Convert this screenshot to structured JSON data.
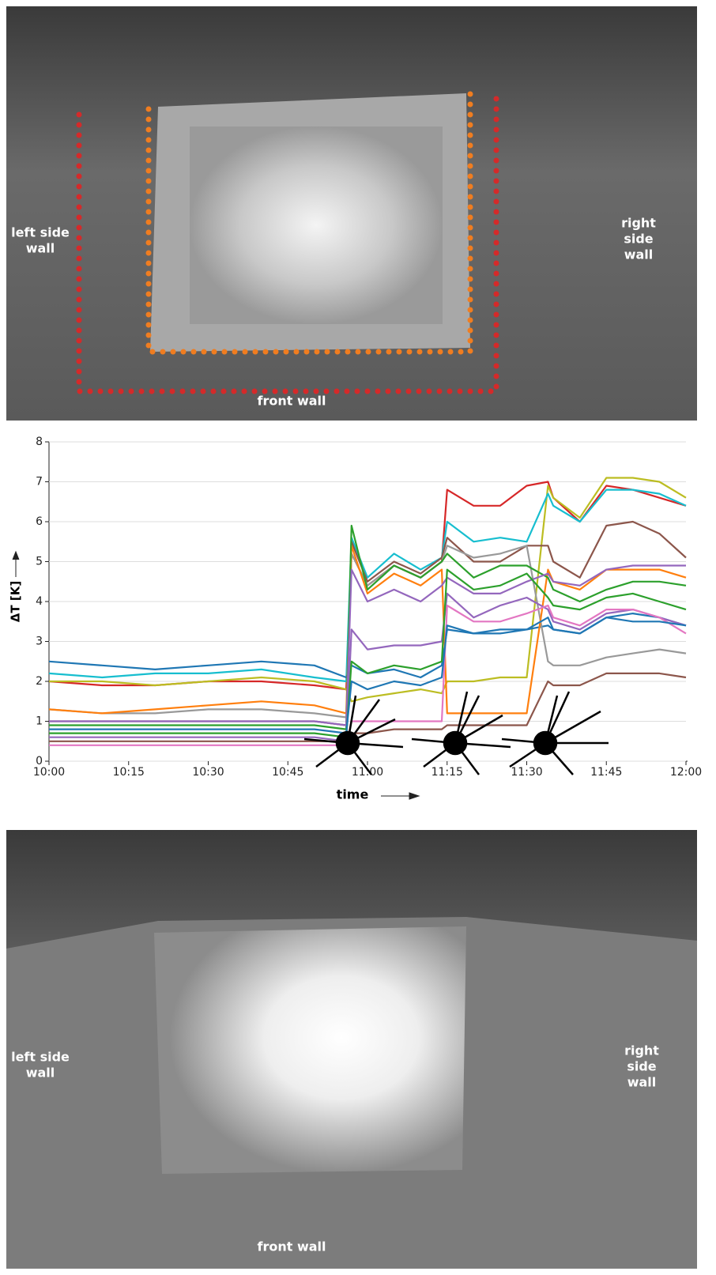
{
  "top_image": {
    "left_label": [
      "left side",
      "wall"
    ],
    "right_label": [
      "right",
      "side",
      "wall"
    ],
    "front_label": "front wall"
  },
  "chart_data": {
    "type": "line",
    "ylabel": "ΔT [K]",
    "xlabel": "time",
    "x": [
      "10:00",
      "10:10",
      "10:20",
      "10:30",
      "10:40",
      "10:50",
      "10:56",
      "10:57",
      "11:00",
      "11:05",
      "11:10",
      "11:14",
      "11:15",
      "11:20",
      "11:25",
      "11:30",
      "11:34",
      "11:35",
      "11:40",
      "11:45",
      "11:50",
      "11:55",
      "12:00"
    ],
    "xlim": [
      "10:00",
      "12:00"
    ],
    "xticks": [
      "10:00",
      "10:15",
      "10:30",
      "10:45",
      "11:00",
      "11:15",
      "11:30",
      "11:45",
      "12:00"
    ],
    "ylim": [
      0,
      8
    ],
    "yticks": [
      0,
      1,
      2,
      3,
      4,
      5,
      6,
      7,
      8
    ],
    "grid": true,
    "series": [
      {
        "color": "#d62728",
        "values": [
          2.0,
          1.9,
          1.9,
          2.0,
          2.0,
          1.9,
          1.8,
          5.2,
          4.4,
          4.9,
          4.6,
          5.0,
          6.8,
          6.4,
          6.4,
          6.9,
          7.0,
          6.6,
          6.0,
          6.9,
          6.8,
          6.6,
          6.4
        ]
      },
      {
        "color": "#bcbd22",
        "values": [
          2.0,
          2.0,
          1.9,
          2.0,
          2.1,
          2.0,
          1.8,
          1.5,
          1.6,
          1.7,
          1.8,
          1.7,
          2.0,
          2.0,
          2.1,
          2.1,
          6.9,
          6.6,
          6.1,
          7.1,
          7.1,
          7.0,
          6.6
        ]
      },
      {
        "color": "#17becf",
        "values": [
          2.2,
          2.1,
          2.2,
          2.2,
          2.3,
          2.1,
          2.0,
          5.6,
          4.6,
          5.2,
          4.8,
          5.1,
          6.0,
          5.5,
          5.6,
          5.5,
          6.7,
          6.4,
          6.0,
          6.8,
          6.8,
          6.7,
          6.4
        ]
      },
      {
        "color": "#1f77b4",
        "values": [
          2.5,
          2.4,
          2.3,
          2.4,
          2.5,
          2.4,
          2.1,
          2.4,
          2.2,
          2.3,
          2.1,
          2.4,
          3.3,
          3.2,
          3.2,
          3.3,
          3.4,
          3.3,
          3.2,
          3.6,
          3.7,
          3.6,
          3.4
        ]
      },
      {
        "color": "#8c564b",
        "values": [
          1.0,
          1.0,
          1.0,
          1.0,
          1.0,
          1.0,
          0.9,
          5.5,
          4.5,
          5.0,
          4.7,
          5.1,
          5.6,
          5.0,
          5.0,
          5.4,
          5.4,
          5.0,
          4.6,
          5.9,
          6.0,
          5.7,
          5.1
        ]
      },
      {
        "color": "#999999",
        "values": [
          1.3,
          1.2,
          1.2,
          1.3,
          1.3,
          1.2,
          1.1,
          5.2,
          4.4,
          4.9,
          4.6,
          5.0,
          5.4,
          5.1,
          5.2,
          5.4,
          2.5,
          2.4,
          2.4,
          2.6,
          2.7,
          2.8,
          2.7
        ]
      },
      {
        "color": "#ff7f0e",
        "values": [
          1.3,
          1.2,
          1.3,
          1.4,
          1.5,
          1.4,
          1.2,
          5.4,
          4.2,
          4.7,
          4.4,
          4.8,
          1.2,
          1.2,
          1.2,
          1.2,
          4.8,
          4.5,
          4.3,
          4.8,
          4.8,
          4.8,
          4.6
        ]
      },
      {
        "color": "#2ca02c",
        "values": [
          0.9,
          0.9,
          0.9,
          0.9,
          0.9,
          0.9,
          0.8,
          5.9,
          4.3,
          4.9,
          4.6,
          5.0,
          5.2,
          4.6,
          4.9,
          4.9,
          4.6,
          4.3,
          4.0,
          4.3,
          4.5,
          4.5,
          4.4
        ]
      },
      {
        "color": "#9467bd",
        "values": [
          1.0,
          1.0,
          1.0,
          1.0,
          1.0,
          1.0,
          0.9,
          4.8,
          4.0,
          4.3,
          4.0,
          4.4,
          4.6,
          4.2,
          4.2,
          4.5,
          4.7,
          4.5,
          4.4,
          4.8,
          4.9,
          4.9,
          4.9
        ]
      },
      {
        "color": "#9467bd",
        "values": [
          0.6,
          0.6,
          0.6,
          0.6,
          0.6,
          0.6,
          0.5,
          3.3,
          2.8,
          2.9,
          2.9,
          3.0,
          4.2,
          3.6,
          3.9,
          4.1,
          3.8,
          3.5,
          3.3,
          3.7,
          3.8,
          3.6,
          3.4
        ]
      },
      {
        "color": "#2ca02c",
        "values": [
          0.7,
          0.7,
          0.7,
          0.7,
          0.7,
          0.7,
          0.6,
          2.5,
          2.2,
          2.4,
          2.3,
          2.5,
          4.8,
          4.3,
          4.4,
          4.7,
          4.1,
          3.9,
          3.8,
          4.1,
          4.2,
          4.0,
          3.8
        ]
      },
      {
        "color": "#e377c2",
        "values": [
          0.4,
          0.4,
          0.4,
          0.4,
          0.4,
          0.4,
          0.4,
          1.0,
          1.0,
          1.0,
          1.0,
          1.0,
          3.9,
          3.5,
          3.5,
          3.7,
          3.9,
          3.6,
          3.4,
          3.8,
          3.8,
          3.6,
          3.2
        ]
      },
      {
        "color": "#8c564b",
        "values": [
          0.5,
          0.5,
          0.5,
          0.5,
          0.5,
          0.5,
          0.5,
          0.7,
          0.7,
          0.8,
          0.8,
          0.8,
          0.9,
          0.9,
          0.9,
          0.9,
          2.0,
          1.9,
          1.9,
          2.2,
          2.2,
          2.2,
          2.1
        ]
      },
      {
        "color": "#1f77b4",
        "values": [
          0.8,
          0.8,
          0.8,
          0.8,
          0.8,
          0.8,
          0.7,
          2.0,
          1.8,
          2.0,
          1.9,
          2.1,
          3.4,
          3.2,
          3.3,
          3.3,
          3.6,
          3.3,
          3.2,
          3.6,
          3.5,
          3.5,
          3.4
        ]
      }
    ]
  },
  "bottom_image": {
    "left_label": [
      "left side",
      "wall"
    ],
    "right_label": [
      "right",
      "side",
      "wall"
    ],
    "front_label": "front wall"
  }
}
